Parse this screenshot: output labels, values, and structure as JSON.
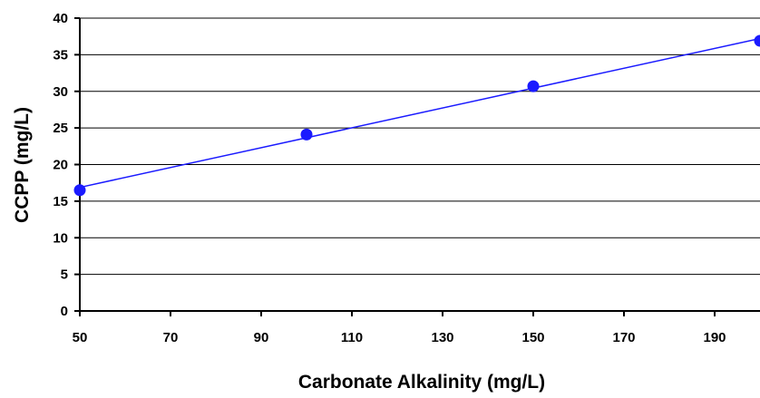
{
  "chart_data": {
    "type": "scatter",
    "title": "",
    "xlabel": "Carbonate Alkalinity (mg/L)",
    "ylabel": "CCPP (mg/L)",
    "xlim": [
      50,
      200
    ],
    "ylim": [
      0,
      40
    ],
    "x_ticks": [
      50,
      70,
      90,
      110,
      130,
      150,
      170,
      190
    ],
    "y_ticks": [
      0,
      5,
      10,
      15,
      20,
      25,
      30,
      35,
      40
    ],
    "grid": true,
    "legend": "none",
    "series": [
      {
        "x": [
          50,
          100,
          150,
          200
        ],
        "y": [
          16.5,
          24.1,
          30.7,
          36.9
        ],
        "marker": "circle",
        "trendline": "linear"
      }
    ],
    "colors": {
      "series": "#1a1aff",
      "grid": "#000000",
      "axis": "#000000"
    }
  }
}
